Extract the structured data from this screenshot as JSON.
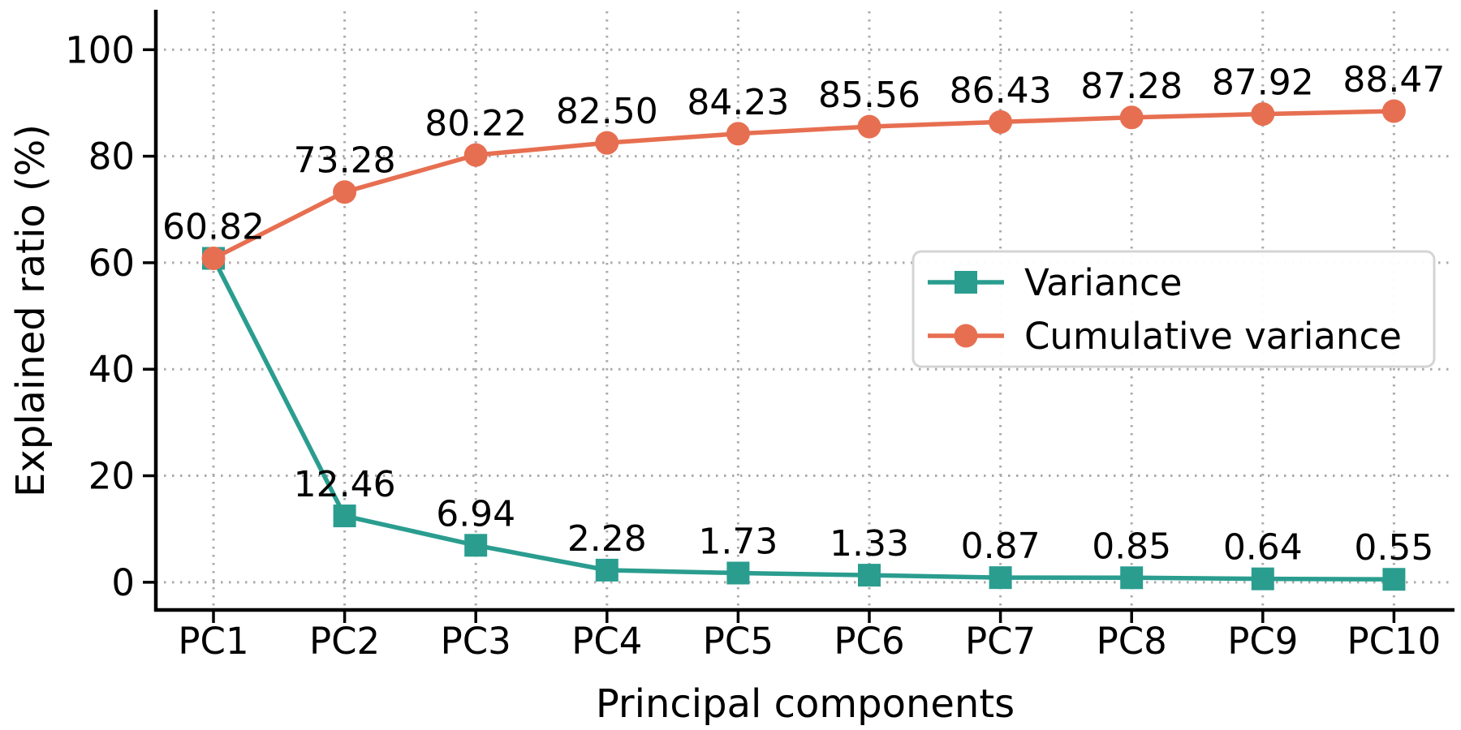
{
  "figure": {
    "background": "#ffffff"
  },
  "chart_data": {
    "type": "line",
    "title": "",
    "xlabel": "Principal components",
    "ylabel": "Explained ratio (%)",
    "categories": [
      "PC1",
      "PC2",
      "PC3",
      "PC4",
      "PC5",
      "PC6",
      "PC7",
      "PC8",
      "PC9",
      "PC10"
    ],
    "yticks": [
      0,
      20,
      40,
      60,
      80,
      100
    ],
    "ylim": [
      -5.2,
      107.2
    ],
    "grid": "dotted",
    "grid_color": "#ababab",
    "axis_color": "#000000",
    "text_color": "#000000",
    "legend_position": "center right",
    "series": [
      {
        "name": "Variance",
        "color": "#2a9d8f",
        "marker": "square",
        "values": [
          60.82,
          12.46,
          6.94,
          2.28,
          1.73,
          1.33,
          0.87,
          0.85,
          0.64,
          0.55
        ],
        "labels": [
          "60.82",
          "12.46",
          "6.94",
          "2.28",
          "1.73",
          "1.33",
          "0.87",
          "0.85",
          "0.64",
          "0.55"
        ]
      },
      {
        "name": "Cumulative variance",
        "color": "#e76f51",
        "marker": "circle",
        "values": [
          60.82,
          73.28,
          80.22,
          82.5,
          84.23,
          85.56,
          86.43,
          87.28,
          87.92,
          88.47
        ],
        "labels": [
          null,
          "73.28",
          "80.22",
          "82.50",
          "84.23",
          "85.56",
          "86.43",
          "87.28",
          "87.92",
          "88.47"
        ]
      }
    ]
  }
}
